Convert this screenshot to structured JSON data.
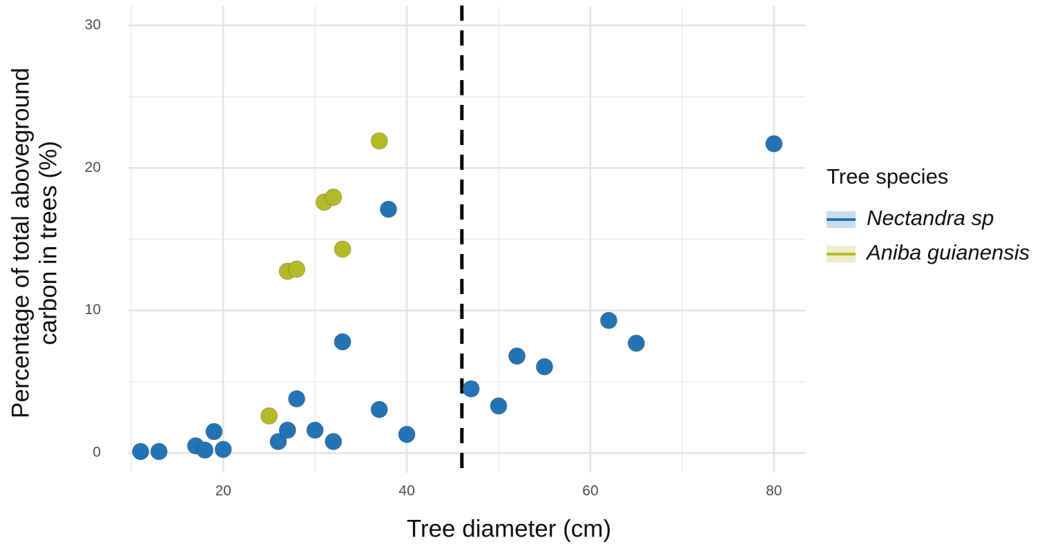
{
  "chart_data": {
    "type": "scatter",
    "xlabel": "Tree diameter (cm)",
    "ylabel": [
      "Percentage of total aboveground",
      "carbon in trees (%)"
    ],
    "legend_title": "Tree species",
    "legend_position": "right",
    "grid": true,
    "xlim": [
      9.6,
      83.4
    ],
    "xticks": [
      20,
      40,
      60,
      80
    ],
    "xminor": [
      10,
      30,
      50,
      70
    ],
    "ylim": [
      -1.4,
      31.4
    ],
    "yticks": [
      0,
      10,
      20,
      30
    ],
    "yminor": [
      5,
      15,
      25
    ],
    "vline": 46,
    "series": [
      {
        "name": "Nectandra sp",
        "color": "#2474b5",
        "x": [
          11,
          13,
          17,
          18,
          19,
          20,
          26,
          27,
          28,
          30,
          32,
          33,
          37,
          38,
          40,
          47,
          50,
          52,
          55,
          62,
          65,
          80
        ],
        "values": [
          0.1,
          0.1,
          0.5,
          0.2,
          1.5,
          0.25,
          0.8,
          1.6,
          3.8,
          1.6,
          0.8,
          7.8,
          3.05,
          17.1,
          1.3,
          4.5,
          3.3,
          6.8,
          6.05,
          9.3,
          7.7,
          21.7
        ]
      },
      {
        "name": "Aniba guianensis",
        "color": "#b4ba27",
        "x": [
          25,
          27,
          28,
          31,
          32,
          33,
          37
        ],
        "values": [
          2.6,
          12.75,
          12.9,
          17.6,
          17.95,
          14.3,
          21.9
        ]
      }
    ]
  }
}
